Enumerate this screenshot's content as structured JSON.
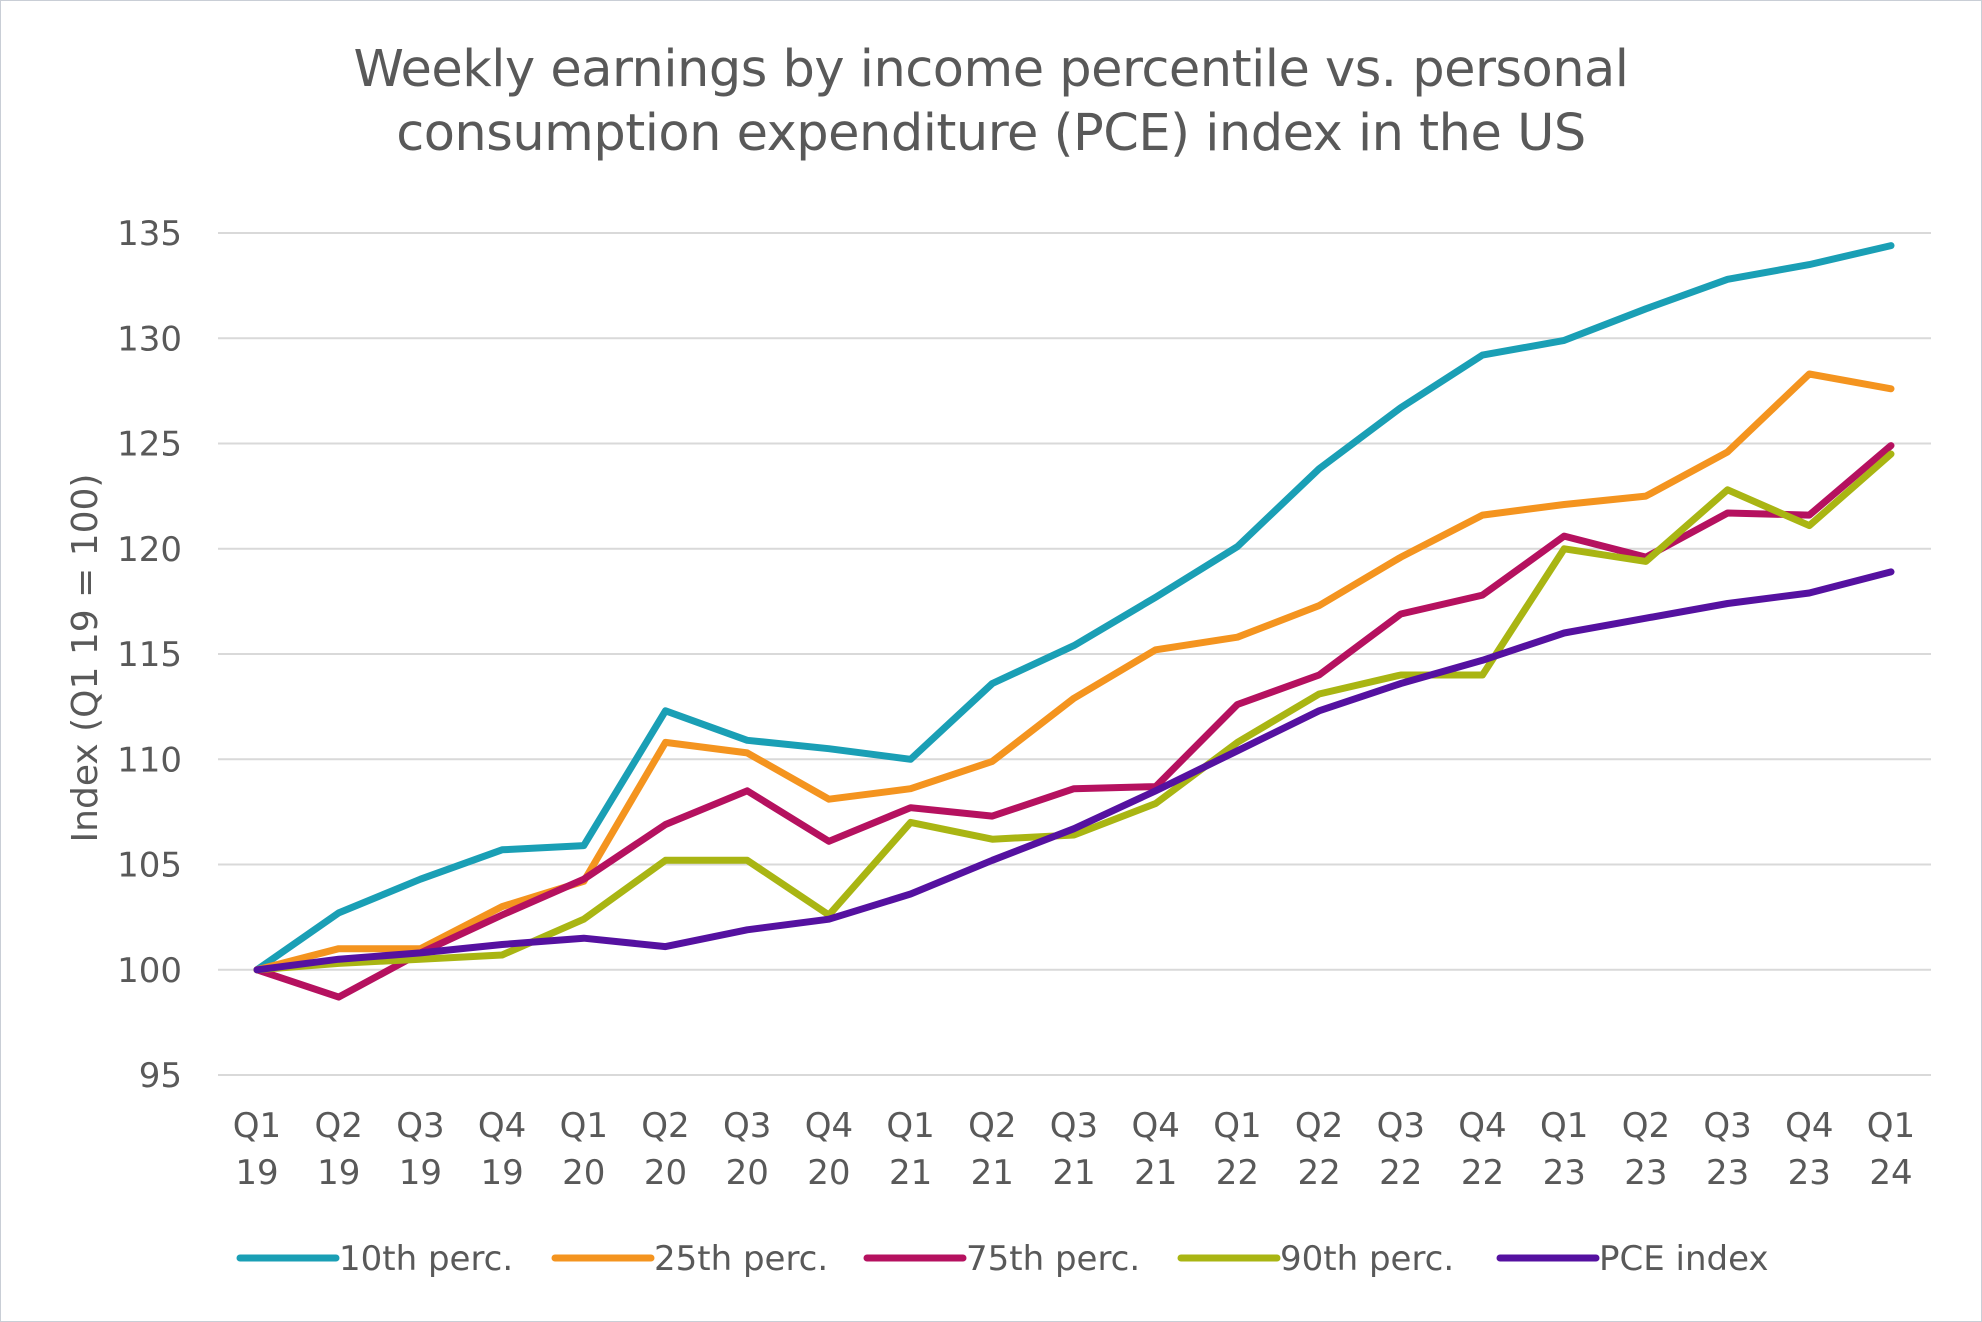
{
  "chart_data": {
    "type": "line",
    "title_lines": [
      "Weekly earnings by income percentile vs. personal",
      "consumption expenditure (PCE) index in the US"
    ],
    "xlabel": "",
    "ylabel": "Index (Q1 19 = 100)",
    "ylim": [
      95,
      135
    ],
    "yticks": [
      95,
      100,
      105,
      110,
      115,
      120,
      125,
      130,
      135
    ],
    "grid": "horizontal",
    "legend_position": "bottom",
    "categories": [
      [
        "Q1",
        "19"
      ],
      [
        "Q2",
        "19"
      ],
      [
        "Q3",
        "19"
      ],
      [
        "Q4",
        "19"
      ],
      [
        "Q1",
        "20"
      ],
      [
        "Q2",
        "20"
      ],
      [
        "Q3",
        "20"
      ],
      [
        "Q4",
        "20"
      ],
      [
        "Q1",
        "21"
      ],
      [
        "Q2",
        "21"
      ],
      [
        "Q3",
        "21"
      ],
      [
        "Q4",
        "21"
      ],
      [
        "Q1",
        "22"
      ],
      [
        "Q2",
        "22"
      ],
      [
        "Q3",
        "22"
      ],
      [
        "Q4",
        "22"
      ],
      [
        "Q1",
        "23"
      ],
      [
        "Q2",
        "23"
      ],
      [
        "Q3",
        "23"
      ],
      [
        "Q4",
        "23"
      ],
      [
        "Q1",
        "24"
      ]
    ],
    "series": [
      {
        "name": "10th perc.",
        "color": "#1a9fb5",
        "values": [
          100,
          102.7,
          104.3,
          105.7,
          105.9,
          112.3,
          110.9,
          110.5,
          110.0,
          113.6,
          115.4,
          117.7,
          120.1,
          123.8,
          126.7,
          129.2,
          129.9,
          131.4,
          132.8,
          133.5,
          134.4
        ]
      },
      {
        "name": "25th perc.",
        "color": "#f4941f",
        "values": [
          100,
          101.0,
          101.0,
          103.0,
          104.2,
          110.8,
          110.3,
          108.1,
          108.6,
          109.9,
          112.9,
          115.2,
          115.8,
          117.3,
          119.6,
          121.6,
          122.1,
          122.5,
          124.6,
          128.3,
          127.6
        ]
      },
      {
        "name": "75th perc.",
        "color": "#b5115f",
        "values": [
          100,
          98.7,
          100.8,
          102.6,
          104.3,
          106.9,
          108.5,
          106.1,
          107.7,
          107.3,
          108.6,
          108.7,
          112.6,
          114.0,
          116.9,
          117.8,
          120.6,
          119.6,
          121.7,
          121.6,
          124.9
        ]
      },
      {
        "name": "90th perc.",
        "color": "#a9b513",
        "values": [
          100,
          100.3,
          100.5,
          100.7,
          102.4,
          105.2,
          105.2,
          102.6,
          107.0,
          106.2,
          106.4,
          107.9,
          110.8,
          113.1,
          114.0,
          114.0,
          120.0,
          119.4,
          122.8,
          121.1,
          124.5
        ]
      },
      {
        "name": "PCE index",
        "color": "#5511a0",
        "values": [
          100,
          100.5,
          100.8,
          101.2,
          101.5,
          101.1,
          101.9,
          102.4,
          103.6,
          105.2,
          106.7,
          108.5,
          110.4,
          112.3,
          113.6,
          114.7,
          116.0,
          116.7,
          117.4,
          117.9,
          118.9
        ]
      }
    ]
  }
}
